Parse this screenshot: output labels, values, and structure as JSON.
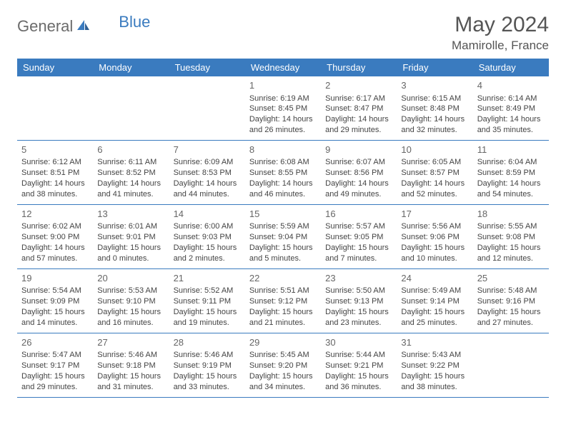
{
  "logo": {
    "part1": "General",
    "part2": "Blue"
  },
  "title": "May 2024",
  "location": "Mamirolle, France",
  "weekdays": [
    "Sunday",
    "Monday",
    "Tuesday",
    "Wednesday",
    "Thursday",
    "Friday",
    "Saturday"
  ],
  "colors": {
    "header_bg": "#3a7bbf",
    "header_fg": "#ffffff",
    "rule": "#3a7bbf",
    "text": "#444444",
    "logo_gray": "#6b6b6b",
    "logo_blue": "#3a7bbf"
  },
  "first_weekday_index": 3,
  "weeks": [
    [
      null,
      null,
      null,
      {
        "n": "1",
        "sr": "Sunrise: 6:19 AM",
        "ss": "Sunset: 8:45 PM",
        "d1": "Daylight: 14 hours",
        "d2": "and 26 minutes."
      },
      {
        "n": "2",
        "sr": "Sunrise: 6:17 AM",
        "ss": "Sunset: 8:47 PM",
        "d1": "Daylight: 14 hours",
        "d2": "and 29 minutes."
      },
      {
        "n": "3",
        "sr": "Sunrise: 6:15 AM",
        "ss": "Sunset: 8:48 PM",
        "d1": "Daylight: 14 hours",
        "d2": "and 32 minutes."
      },
      {
        "n": "4",
        "sr": "Sunrise: 6:14 AM",
        "ss": "Sunset: 8:49 PM",
        "d1": "Daylight: 14 hours",
        "d2": "and 35 minutes."
      }
    ],
    [
      {
        "n": "5",
        "sr": "Sunrise: 6:12 AM",
        "ss": "Sunset: 8:51 PM",
        "d1": "Daylight: 14 hours",
        "d2": "and 38 minutes."
      },
      {
        "n": "6",
        "sr": "Sunrise: 6:11 AM",
        "ss": "Sunset: 8:52 PM",
        "d1": "Daylight: 14 hours",
        "d2": "and 41 minutes."
      },
      {
        "n": "7",
        "sr": "Sunrise: 6:09 AM",
        "ss": "Sunset: 8:53 PM",
        "d1": "Daylight: 14 hours",
        "d2": "and 44 minutes."
      },
      {
        "n": "8",
        "sr": "Sunrise: 6:08 AM",
        "ss": "Sunset: 8:55 PM",
        "d1": "Daylight: 14 hours",
        "d2": "and 46 minutes."
      },
      {
        "n": "9",
        "sr": "Sunrise: 6:07 AM",
        "ss": "Sunset: 8:56 PM",
        "d1": "Daylight: 14 hours",
        "d2": "and 49 minutes."
      },
      {
        "n": "10",
        "sr": "Sunrise: 6:05 AM",
        "ss": "Sunset: 8:57 PM",
        "d1": "Daylight: 14 hours",
        "d2": "and 52 minutes."
      },
      {
        "n": "11",
        "sr": "Sunrise: 6:04 AM",
        "ss": "Sunset: 8:59 PM",
        "d1": "Daylight: 14 hours",
        "d2": "and 54 minutes."
      }
    ],
    [
      {
        "n": "12",
        "sr": "Sunrise: 6:02 AM",
        "ss": "Sunset: 9:00 PM",
        "d1": "Daylight: 14 hours",
        "d2": "and 57 minutes."
      },
      {
        "n": "13",
        "sr": "Sunrise: 6:01 AM",
        "ss": "Sunset: 9:01 PM",
        "d1": "Daylight: 15 hours",
        "d2": "and 0 minutes."
      },
      {
        "n": "14",
        "sr": "Sunrise: 6:00 AM",
        "ss": "Sunset: 9:03 PM",
        "d1": "Daylight: 15 hours",
        "d2": "and 2 minutes."
      },
      {
        "n": "15",
        "sr": "Sunrise: 5:59 AM",
        "ss": "Sunset: 9:04 PM",
        "d1": "Daylight: 15 hours",
        "d2": "and 5 minutes."
      },
      {
        "n": "16",
        "sr": "Sunrise: 5:57 AM",
        "ss": "Sunset: 9:05 PM",
        "d1": "Daylight: 15 hours",
        "d2": "and 7 minutes."
      },
      {
        "n": "17",
        "sr": "Sunrise: 5:56 AM",
        "ss": "Sunset: 9:06 PM",
        "d1": "Daylight: 15 hours",
        "d2": "and 10 minutes."
      },
      {
        "n": "18",
        "sr": "Sunrise: 5:55 AM",
        "ss": "Sunset: 9:08 PM",
        "d1": "Daylight: 15 hours",
        "d2": "and 12 minutes."
      }
    ],
    [
      {
        "n": "19",
        "sr": "Sunrise: 5:54 AM",
        "ss": "Sunset: 9:09 PM",
        "d1": "Daylight: 15 hours",
        "d2": "and 14 minutes."
      },
      {
        "n": "20",
        "sr": "Sunrise: 5:53 AM",
        "ss": "Sunset: 9:10 PM",
        "d1": "Daylight: 15 hours",
        "d2": "and 16 minutes."
      },
      {
        "n": "21",
        "sr": "Sunrise: 5:52 AM",
        "ss": "Sunset: 9:11 PM",
        "d1": "Daylight: 15 hours",
        "d2": "and 19 minutes."
      },
      {
        "n": "22",
        "sr": "Sunrise: 5:51 AM",
        "ss": "Sunset: 9:12 PM",
        "d1": "Daylight: 15 hours",
        "d2": "and 21 minutes."
      },
      {
        "n": "23",
        "sr": "Sunrise: 5:50 AM",
        "ss": "Sunset: 9:13 PM",
        "d1": "Daylight: 15 hours",
        "d2": "and 23 minutes."
      },
      {
        "n": "24",
        "sr": "Sunrise: 5:49 AM",
        "ss": "Sunset: 9:14 PM",
        "d1": "Daylight: 15 hours",
        "d2": "and 25 minutes."
      },
      {
        "n": "25",
        "sr": "Sunrise: 5:48 AM",
        "ss": "Sunset: 9:16 PM",
        "d1": "Daylight: 15 hours",
        "d2": "and 27 minutes."
      }
    ],
    [
      {
        "n": "26",
        "sr": "Sunrise: 5:47 AM",
        "ss": "Sunset: 9:17 PM",
        "d1": "Daylight: 15 hours",
        "d2": "and 29 minutes."
      },
      {
        "n": "27",
        "sr": "Sunrise: 5:46 AM",
        "ss": "Sunset: 9:18 PM",
        "d1": "Daylight: 15 hours",
        "d2": "and 31 minutes."
      },
      {
        "n": "28",
        "sr": "Sunrise: 5:46 AM",
        "ss": "Sunset: 9:19 PM",
        "d1": "Daylight: 15 hours",
        "d2": "and 33 minutes."
      },
      {
        "n": "29",
        "sr": "Sunrise: 5:45 AM",
        "ss": "Sunset: 9:20 PM",
        "d1": "Daylight: 15 hours",
        "d2": "and 34 minutes."
      },
      {
        "n": "30",
        "sr": "Sunrise: 5:44 AM",
        "ss": "Sunset: 9:21 PM",
        "d1": "Daylight: 15 hours",
        "d2": "and 36 minutes."
      },
      {
        "n": "31",
        "sr": "Sunrise: 5:43 AM",
        "ss": "Sunset: 9:22 PM",
        "d1": "Daylight: 15 hours",
        "d2": "and 38 minutes."
      },
      null
    ]
  ]
}
